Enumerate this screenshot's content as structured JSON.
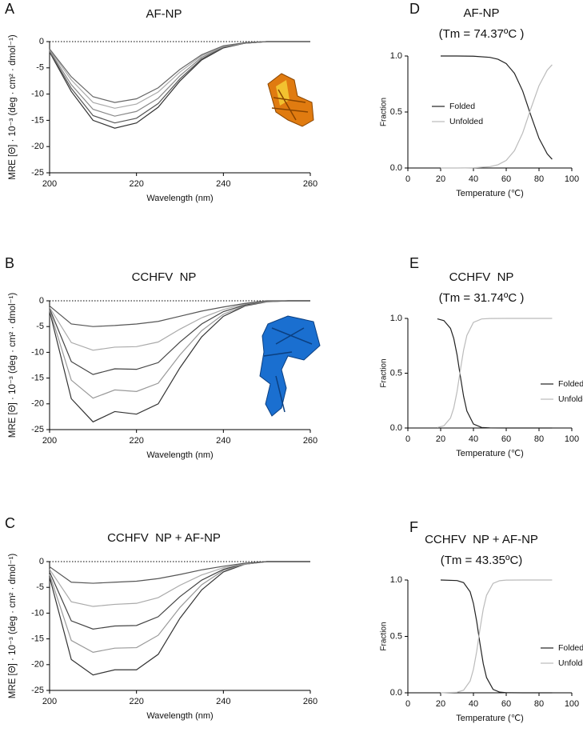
{
  "chart_data": [
    {
      "type": "line",
      "panel": "A",
      "title": "AF-NP",
      "xlabel": "Wavelength (nm)",
      "ylabel": "MRE [Θ] · 10⁻³ (deg · cm² · dmol⁻¹)",
      "x": [
        200,
        205,
        210,
        215,
        220,
        225,
        230,
        235,
        240,
        245,
        250,
        255,
        260
      ],
      "xlim": [
        200,
        260
      ],
      "xticks": [
        200,
        220,
        240,
        260
      ],
      "ylim": [
        -25,
        0
      ],
      "yticks": [
        -25,
        -20,
        -15,
        -10,
        -5,
        0
      ],
      "zero_line": true,
      "series": [
        {
          "color": "#333333",
          "values": [
            -2,
            -9.5,
            -15,
            -16.5,
            -15.5,
            -12.5,
            -7.5,
            -3.5,
            -1.2,
            -0.3,
            0,
            0,
            0
          ]
        },
        {
          "color": "#555555",
          "values": [
            -1.9,
            -8.9,
            -14.1,
            -15.5,
            -14.6,
            -11.8,
            -7.1,
            -3.3,
            -1.1,
            -0.3,
            0,
            0,
            0
          ]
        },
        {
          "color": "#888888",
          "values": [
            -1.7,
            -8.2,
            -12.9,
            -14.2,
            -13.3,
            -10.8,
            -6.5,
            -3.0,
            -1.0,
            -0.3,
            0,
            0,
            0
          ]
        },
        {
          "color": "#aaaaaa",
          "values": [
            -1.5,
            -7.3,
            -11.6,
            -12.7,
            -11.9,
            -9.6,
            -5.8,
            -2.7,
            -0.9,
            -0.2,
            0,
            0,
            0
          ]
        },
        {
          "color": "#666666",
          "values": [
            -1.4,
            -6.7,
            -10.5,
            -11.6,
            -10.9,
            -8.8,
            -5.3,
            -2.5,
            -0.8,
            -0.2,
            0,
            0,
            0
          ]
        }
      ]
    },
    {
      "type": "line",
      "panel": "D",
      "title": "AF-NP",
      "subtitle": "(Tm = 74.37ºC )",
      "xlabel": "Temperature (℃)",
      "ylabel": "Fraction",
      "x": [
        20,
        30,
        40,
        50,
        55,
        60,
        65,
        70,
        75,
        80,
        85,
        88
      ],
      "xlim": [
        0,
        100
      ],
      "xticks": [
        0,
        20,
        40,
        60,
        80,
        100
      ],
      "ylim": [
        0,
        1
      ],
      "yticks": [
        {
          "value": 0,
          "label": "0.0"
        },
        0.5,
        {
          "value": 1,
          "label": "1.0"
        }
      ],
      "zero_line": true,
      "series": [
        {
          "name": "Folded",
          "color": "#222222",
          "values": [
            1.0,
            1.0,
            0.998,
            0.988,
            0.971,
            0.932,
            0.846,
            0.689,
            0.471,
            0.265,
            0.127,
            0.078
          ]
        },
        {
          "name": "Unfolded",
          "color": "#bbbbbb",
          "values": [
            0,
            0,
            0.002,
            0.012,
            0.029,
            0.068,
            0.154,
            0.311,
            0.529,
            0.735,
            0.873,
            0.922
          ]
        }
      ]
    },
    {
      "type": "line",
      "panel": "B",
      "title": "CCHFV  NP",
      "xlabel": "Wavelength (nm)",
      "ylabel": "MRE [Θ] · 10⁻³ (deg · cm² · dmol⁻¹)",
      "x": [
        200,
        205,
        210,
        215,
        220,
        225,
        230,
        235,
        240,
        245,
        250,
        255,
        260
      ],
      "xlim": [
        200,
        260
      ],
      "xticks": [
        200,
        220,
        240,
        260
      ],
      "ylim": [
        -25,
        0
      ],
      "yticks": [
        -25,
        -20,
        -15,
        -10,
        -5,
        0
      ],
      "zero_line": true,
      "series": [
        {
          "color": "#333333",
          "values": [
            -2,
            -19,
            -23.5,
            -21.5,
            -22,
            -20,
            -13,
            -7,
            -3,
            -1,
            -0.2,
            0,
            0
          ]
        },
        {
          "color": "#999999",
          "values": [
            -1.75,
            -15.4,
            -18.9,
            -17.3,
            -17.6,
            -16,
            -10.5,
            -5.8,
            -2.6,
            -0.9,
            -0.15,
            0,
            0
          ]
        },
        {
          "color": "#444444",
          "values": [
            -1.5,
            -11.8,
            -14.3,
            -13.2,
            -13.3,
            -12,
            -8,
            -4.5,
            -2.1,
            -0.8,
            -0.1,
            0,
            0
          ]
        },
        {
          "color": "#aaaaaa",
          "values": [
            -1.3,
            -8.1,
            -9.6,
            -9,
            -8.9,
            -8,
            -5.5,
            -3.3,
            -1.7,
            -0.6,
            -0.1,
            0,
            0
          ]
        },
        {
          "color": "#555555",
          "values": [
            -1,
            -4.5,
            -5,
            -4.8,
            -4.5,
            -4,
            -3,
            -2,
            -1.2,
            -0.5,
            0,
            0,
            0
          ]
        }
      ]
    },
    {
      "type": "line",
      "panel": "E",
      "title": "CCHFV  NP",
      "subtitle": "(Tm = 31.74ºC )",
      "xlabel": "Temperature (℃)",
      "ylabel": "Fraction",
      "x": [
        18,
        22,
        26,
        28,
        30,
        32,
        34,
        36,
        40,
        45,
        50,
        60,
        70,
        80,
        88
      ],
      "xlim": [
        0,
        100
      ],
      "xticks": [
        0,
        20,
        40,
        60,
        80,
        100
      ],
      "ylim": [
        0,
        1
      ],
      "yticks": [
        {
          "value": 0,
          "label": "0.0"
        },
        0.5,
        {
          "value": 1,
          "label": "1.0"
        }
      ],
      "zero_line": true,
      "series": [
        {
          "name": "Folded",
          "color": "#222222",
          "values": [
            0.996,
            0.98,
            0.909,
            0.817,
            0.668,
            0.474,
            0.289,
            0.155,
            0.036,
            0.005,
            0.001,
            0,
            0,
            0,
            0
          ]
        },
        {
          "name": "Unfolded",
          "color": "#bbbbbb",
          "values": [
            0.004,
            0.02,
            0.091,
            0.183,
            0.332,
            0.526,
            0.711,
            0.845,
            0.964,
            0.995,
            0.999,
            1,
            1,
            1,
            1
          ]
        }
      ]
    },
    {
      "type": "line",
      "panel": "C",
      "title": "CCHFV  NP + AF-NP",
      "xlabel": "Wavelength (nm)",
      "ylabel": "MRE [Θ] · 10⁻³ (deg · cm² · dmol⁻¹)",
      "x": [
        200,
        205,
        210,
        215,
        220,
        225,
        230,
        235,
        240,
        245,
        250,
        255,
        260
      ],
      "xlim": [
        200,
        260
      ],
      "xticks": [
        200,
        220,
        240,
        260
      ],
      "ylim": [
        -25,
        0
      ],
      "yticks": [
        -25,
        -20,
        -15,
        -10,
        -5,
        0
      ],
      "zero_line": true,
      "series": [
        {
          "color": "#333333",
          "values": [
            -3,
            -19,
            -22,
            -21,
            -21,
            -18,
            -11,
            -5.5,
            -2,
            -0.5,
            0,
            0,
            0
          ]
        },
        {
          "color": "#999999",
          "values": [
            -2.5,
            -15.3,
            -17.6,
            -16.8,
            -16.7,
            -14.3,
            -8.9,
            -4.5,
            -1.7,
            -0.5,
            0,
            0,
            0
          ]
        },
        {
          "color": "#444444",
          "values": [
            -2,
            -11.5,
            -13.1,
            -12.5,
            -12.4,
            -10.7,
            -6.8,
            -3.6,
            -1.5,
            -0.4,
            0,
            0,
            0
          ]
        },
        {
          "color": "#aaaaaa",
          "values": [
            -1.5,
            -7.8,
            -8.7,
            -8.3,
            -8.1,
            -7,
            -4.6,
            -2.6,
            -1.2,
            -0.4,
            0,
            0,
            0
          ]
        },
        {
          "color": "#555555",
          "values": [
            -1,
            -4,
            -4.2,
            -4,
            -3.8,
            -3.3,
            -2.5,
            -1.6,
            -0.9,
            -0.3,
            0,
            0,
            0
          ]
        }
      ]
    },
    {
      "type": "line",
      "panel": "F",
      "title": "CCHFV  NP + AF-NP",
      "subtitle": "(Tm = 43.35ºC)",
      "xlabel": "Temperature (℃)",
      "ylabel": "Fraction",
      "x": [
        20,
        30,
        34,
        38,
        40,
        42,
        44,
        46,
        48,
        52,
        56,
        60,
        70,
        80,
        88
      ],
      "xlim": [
        0,
        100
      ],
      "xticks": [
        0,
        20,
        40,
        60,
        80,
        100
      ],
      "ylim": [
        0,
        1
      ],
      "yticks": [
        {
          "value": 0,
          "label": "0.0"
        },
        0.5,
        {
          "value": 1,
          "label": "1.0"
        }
      ],
      "zero_line": true,
      "series": [
        {
          "name": "Folded",
          "color": "#222222",
          "values": [
            1.0,
            0.995,
            0.977,
            0.895,
            0.792,
            0.632,
            0.435,
            0.257,
            0.135,
            0.03,
            0.006,
            0.001,
            0,
            0,
            0
          ]
        },
        {
          "name": "Unfolded",
          "color": "#bbbbbb",
          "values": [
            0,
            0.005,
            0.023,
            0.105,
            0.208,
            0.368,
            0.565,
            0.743,
            0.865,
            0.97,
            0.994,
            0.999,
            1,
            1,
            1
          ]
        }
      ]
    }
  ]
}
